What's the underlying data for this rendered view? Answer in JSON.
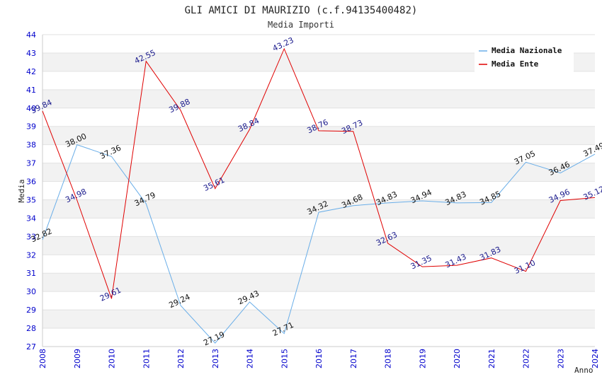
{
  "chart_data": {
    "type": "line",
    "title": "GLI AMICI DI MAURIZIO (c.f.94135400482)",
    "subtitle": "Media Importi",
    "xlabel": "Anno",
    "ylabel": "Media",
    "ylim": [
      27,
      44
    ],
    "yticks": [
      27,
      28,
      29,
      30,
      31,
      32,
      33,
      34,
      35,
      36,
      37,
      38,
      39,
      40,
      41,
      42,
      43,
      44
    ],
    "x": [
      "2008",
      "2009",
      "2010",
      "2011",
      "2012",
      "2013",
      "2014",
      "2015",
      "2016",
      "2017",
      "2018",
      "2019",
      "2020",
      "2021",
      "2022",
      "2023",
      "2024"
    ],
    "grid": "horizontal bands",
    "legend_position": "top-right",
    "series": [
      {
        "name": "Media Nazionale",
        "color": "#6aaee8",
        "values": [
          32.82,
          38.0,
          37.36,
          34.79,
          29.24,
          27.19,
          29.43,
          27.71,
          34.32,
          34.68,
          34.83,
          34.94,
          34.83,
          34.85,
          37.05,
          36.46,
          37.49
        ],
        "labels": [
          "32.82",
          "38.00",
          "37.36",
          "34.79",
          "29.24",
          "27.19",
          "29.43",
          "27.71",
          "34.32",
          "34.68",
          "34.83",
          "34.94",
          "34.83",
          "34.85",
          "37.05",
          "36.46",
          "37.49"
        ]
      },
      {
        "name": "Media Ente",
        "color": "#e00000",
        "values": [
          39.84,
          34.98,
          29.61,
          42.55,
          39.88,
          35.61,
          38.84,
          43.23,
          38.76,
          38.73,
          32.63,
          31.35,
          31.43,
          31.83,
          31.1,
          34.96,
          35.12
        ],
        "labels": [
          "39.84",
          "34.98",
          "29.61",
          "42.55",
          "39.88",
          "35.61",
          "38.84",
          "43.23",
          "38.76",
          "38.73",
          "32.63",
          "31.35",
          "31.43",
          "31.83",
          "31.10",
          "34.96",
          "35.12"
        ]
      }
    ]
  }
}
